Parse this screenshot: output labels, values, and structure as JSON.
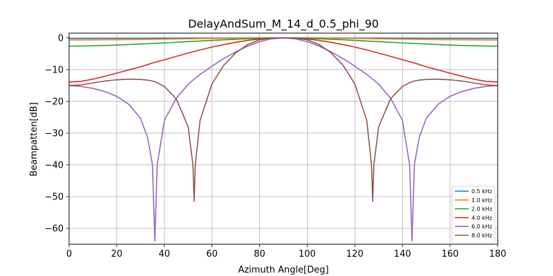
{
  "chart_data": {
    "type": "line",
    "title": "DelayAndSum_M_14_d_0.5_phi_90",
    "xlabel": "Azimuth Angle[Deg]",
    "ylabel": "Beampatten[dB]",
    "xlim": [
      0,
      180
    ],
    "ylim": [
      -65,
      1.5
    ],
    "xticks": [
      0,
      20,
      40,
      60,
      80,
      100,
      120,
      140,
      160,
      180
    ],
    "yticks": [
      0,
      -10,
      -20,
      -30,
      -40,
      -50,
      -60
    ],
    "grid": true,
    "legend_position": "lower-right",
    "x": [
      0,
      5,
      10,
      15,
      20,
      25,
      30,
      33,
      35,
      36,
      37,
      40,
      45,
      50,
      52,
      52.5,
      53,
      55,
      60,
      65,
      70,
      75,
      80,
      85,
      90,
      95,
      100,
      105,
      110,
      115,
      120,
      125,
      127,
      127.5,
      128,
      130,
      135,
      140,
      143,
      144,
      145,
      147,
      150,
      155,
      160,
      165,
      170,
      175,
      180
    ],
    "series": [
      {
        "name": "0.5 kHz",
        "color": "#1f77b4",
        "values": [
          -0.17,
          -0.17,
          -0.16,
          -0.15,
          -0.14,
          -0.13,
          -0.12,
          -0.11,
          -0.1,
          -0.1,
          -0.1,
          -0.09,
          -0.08,
          -0.07,
          -0.06,
          -0.06,
          -0.06,
          -0.06,
          -0.05,
          -0.04,
          -0.03,
          -0.02,
          -0.01,
          0,
          0,
          0,
          -0.01,
          -0.02,
          -0.03,
          -0.04,
          -0.05,
          -0.06,
          -0.06,
          -0.06,
          -0.06,
          -0.07,
          -0.08,
          -0.09,
          -0.1,
          -0.1,
          -0.1,
          -0.11,
          -0.12,
          -0.13,
          -0.14,
          -0.15,
          -0.16,
          -0.17,
          -0.17
        ]
      },
      {
        "name": "1.0 kHz",
        "color": "#ff7f0e",
        "values": [
          -0.67,
          -0.66,
          -0.64,
          -0.61,
          -0.58,
          -0.54,
          -0.5,
          -0.47,
          -0.45,
          -0.44,
          -0.43,
          -0.4,
          -0.35,
          -0.29,
          -0.27,
          -0.27,
          -0.26,
          -0.24,
          -0.2,
          -0.15,
          -0.11,
          -0.07,
          -0.03,
          -0.01,
          0,
          -0.01,
          -0.03,
          -0.07,
          -0.11,
          -0.15,
          -0.2,
          -0.24,
          -0.26,
          -0.27,
          -0.27,
          -0.29,
          -0.35,
          -0.4,
          -0.43,
          -0.44,
          -0.45,
          -0.47,
          -0.5,
          -0.54,
          -0.58,
          -0.61,
          -0.64,
          -0.66,
          -0.67
        ]
      },
      {
        "name": "2.0 kHz",
        "color": "#2ca02c",
        "values": [
          -2.6,
          -2.56,
          -2.49,
          -2.39,
          -2.26,
          -2.11,
          -1.94,
          -1.83,
          -1.76,
          -1.72,
          -1.69,
          -1.57,
          -1.38,
          -1.18,
          -1.1,
          -1.08,
          -1.06,
          -0.98,
          -0.79,
          -0.61,
          -0.44,
          -0.28,
          -0.15,
          -0.04,
          0,
          -0.04,
          -0.15,
          -0.28,
          -0.44,
          -0.61,
          -0.79,
          -0.98,
          -1.06,
          -1.08,
          -1.1,
          -1.18,
          -1.38,
          -1.57,
          -1.69,
          -1.72,
          -1.76,
          -1.83,
          -1.94,
          -2.11,
          -2.26,
          -2.39,
          -2.49,
          -2.56,
          -2.6
        ]
      },
      {
        "name": "4.0 kHz",
        "color": "#d62728",
        "values": [
          -13.9,
          -13.7,
          -13.0,
          -12.1,
          -11.1,
          -10.1,
          -9.1,
          -8.4,
          -7.9,
          -7.7,
          -7.5,
          -6.9,
          -5.8,
          -4.8,
          -4.4,
          -4.3,
          -4.2,
          -3.8,
          -2.9,
          -2.1,
          -1.4,
          -0.8,
          -0.35,
          -0.1,
          0,
          -0.1,
          -0.35,
          -0.8,
          -1.4,
          -2.1,
          -2.9,
          -3.8,
          -4.2,
          -4.3,
          -4.4,
          -4.8,
          -5.8,
          -6.9,
          -7.5,
          -7.7,
          -7.9,
          -8.4,
          -9.1,
          -10.1,
          -11.1,
          -12.1,
          -13.0,
          -13.7,
          -13.9
        ]
      },
      {
        "name": "6.0 kHz",
        "color": "#9467bd",
        "values": [
          -15.0,
          -15.3,
          -15.9,
          -16.9,
          -18.4,
          -20.9,
          -25.3,
          -31.5,
          -40.0,
          -64.0,
          -40.0,
          -26.0,
          -19.0,
          -14.6,
          -13.3,
          -13.0,
          -12.7,
          -11.5,
          -8.9,
          -6.5,
          -4.4,
          -2.6,
          -1.2,
          -0.3,
          0,
          -0.3,
          -1.2,
          -2.6,
          -4.4,
          -6.5,
          -8.9,
          -11.5,
          -12.7,
          -13.0,
          -13.3,
          -14.6,
          -19.0,
          -26.0,
          -40.0,
          -64.0,
          -40.0,
          -31.5,
          -25.3,
          -20.9,
          -18.4,
          -16.9,
          -15.9,
          -15.3,
          -15.0
        ]
      },
      {
        "name": "8.0 kHz",
        "color": "#8c564b",
        "values": [
          -15.0,
          -14.8,
          -14.2,
          -13.6,
          -13.2,
          -13.0,
          -13.1,
          -13.3,
          -13.6,
          -13.8,
          -14.1,
          -15.3,
          -19.2,
          -28.0,
          -40.0,
          -51.5,
          -40.0,
          -26.0,
          -14.5,
          -8.6,
          -4.7,
          -2.1,
          -0.6,
          -0.1,
          0,
          -0.1,
          -0.6,
          -2.1,
          -4.7,
          -8.6,
          -14.5,
          -26.0,
          -40.0,
          -51.5,
          -40.0,
          -28.0,
          -19.2,
          -15.3,
          -14.1,
          -13.8,
          -13.6,
          -13.3,
          -13.1,
          -13.0,
          -13.2,
          -13.6,
          -14.2,
          -14.8,
          -15.0
        ]
      }
    ]
  }
}
